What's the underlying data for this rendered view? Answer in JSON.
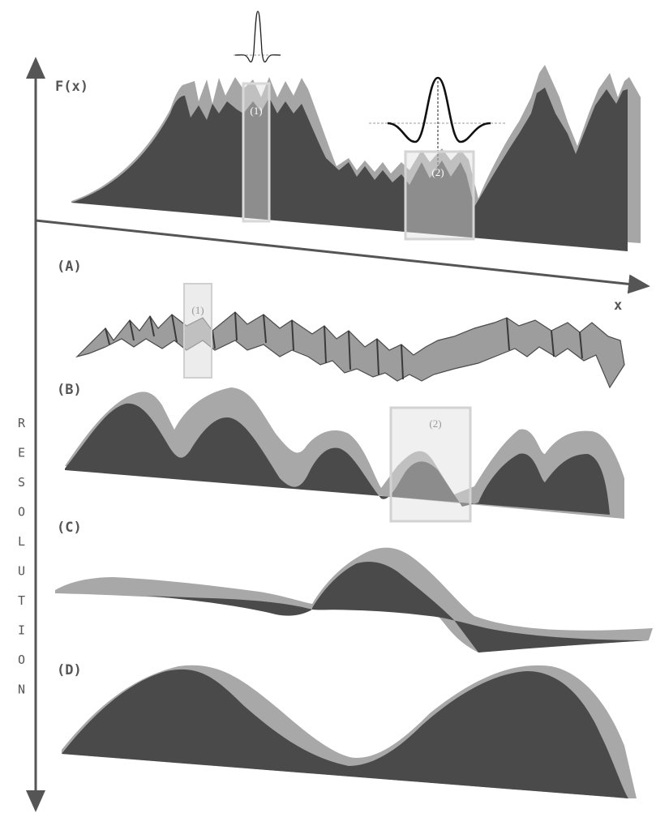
{
  "axes": {
    "fx_label": "F(x)",
    "x_label": "x",
    "resolution_label": "RESOLUTION"
  },
  "panels": {
    "a": "(A)",
    "b": "(B)",
    "c": "(C)",
    "d": "(D)"
  },
  "windows": {
    "w1_top": "(1)",
    "w2_top": "(2)",
    "w1_a": "(1)",
    "w2_b": "(2)"
  },
  "colors": {
    "dark_face": "#4a4a4a",
    "light_face": "#a8a8a8",
    "axis": "#555555",
    "window_fill": "#d8d8d8"
  }
}
